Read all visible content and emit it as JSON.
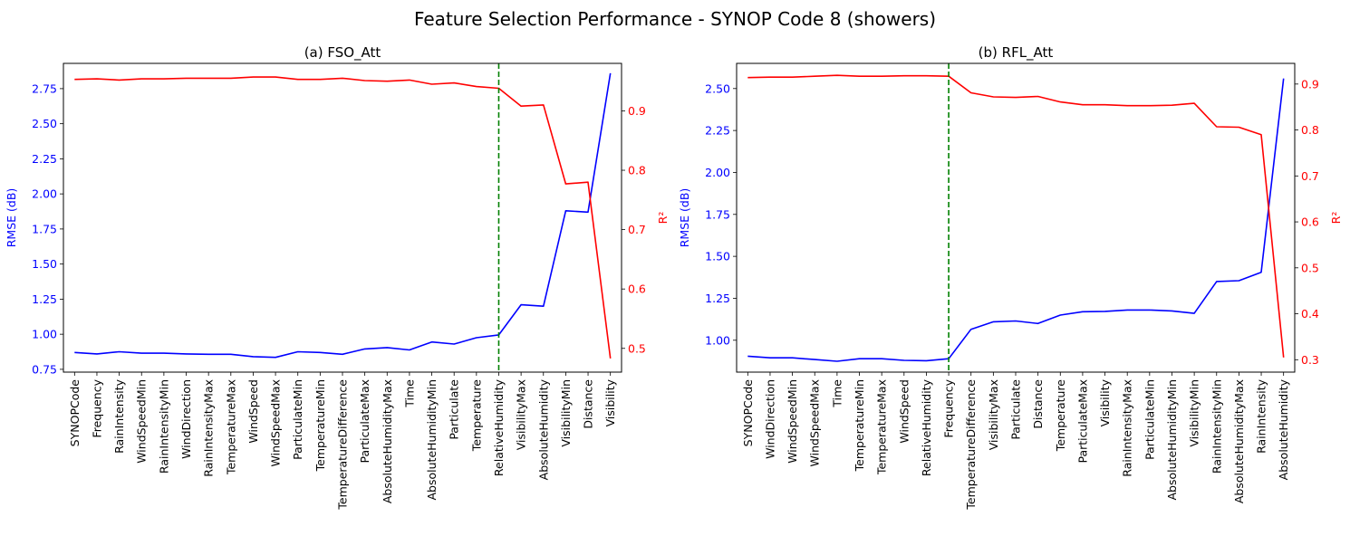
{
  "figure": {
    "title": "Feature Selection Performance - SYNOP Code 8 (showers)",
    "colors": {
      "rmse": "#0000ff",
      "r2": "#ff0000",
      "cutoff": "#008000"
    }
  },
  "chart_data": [
    {
      "type": "line",
      "title": "(a) FSO_Att",
      "xlabel": "",
      "ylabel_left": "RMSE (dB)",
      "ylabel_right": "R²",
      "categories": [
        "SYNOPCode",
        "Frequency",
        "RainIntensity",
        "WindSpeedMin",
        "RainIntensityMin",
        "WindDirection",
        "RainIntensityMax",
        "TemperatureMax",
        "WindSpeed",
        "WindSpeedMax",
        "ParticulateMin",
        "TemperatureMin",
        "TemperatureDifference",
        "ParticulateMax",
        "AbsoluteHumidityMax",
        "Time",
        "AbsoluteHumidityMin",
        "Particulate",
        "Temperature",
        "RelativeHumidity",
        "VisibilityMax",
        "AbsoluteHumidity",
        "VisibilityMin",
        "Distance",
        "Visibility"
      ],
      "left_ylim": [
        0.73,
        2.93
      ],
      "left_ticks": [
        "0.75",
        "1.00",
        "1.25",
        "1.50",
        "1.75",
        "2.00",
        "2.25",
        "2.50",
        "2.75"
      ],
      "right_ylim": [
        0.46,
        0.98
      ],
      "right_ticks": [
        "0.5",
        "0.6",
        "0.7",
        "0.8",
        "0.9"
      ],
      "cutoff_category": "RelativeHumidity",
      "series": [
        {
          "name": "",
          "axis": "left",
          "color": "#0000ff",
          "values": [
            0.87,
            0.86,
            0.875,
            0.865,
            0.865,
            0.86,
            0.857,
            0.857,
            0.84,
            0.835,
            0.875,
            0.87,
            0.857,
            0.895,
            0.905,
            0.888,
            0.945,
            0.93,
            0.975,
            0.995,
            1.21,
            1.2,
            1.88,
            1.87,
            2.86
          ]
        },
        {
          "name": "",
          "axis": "right",
          "color": "#ff0000",
          "values": [
            0.953,
            0.954,
            0.952,
            0.954,
            0.954,
            0.955,
            0.955,
            0.955,
            0.957,
            0.957,
            0.953,
            0.953,
            0.955,
            0.951,
            0.95,
            0.952,
            0.945,
            0.947,
            0.941,
            0.938,
            0.908,
            0.91,
            0.777,
            0.78,
            0.483
          ]
        }
      ],
      "grid": false
    },
    {
      "type": "line",
      "title": "(b) RFL_Att",
      "xlabel": "",
      "ylabel_left": "RMSE (dB)",
      "ylabel_right": "R²",
      "categories": [
        "SYNOPCode",
        "WindDirection",
        "WindSpeedMin",
        "WindSpeedMax",
        "Time",
        "TemperatureMin",
        "TemperatureMax",
        "WindSpeed",
        "RelativeHumidity",
        "Frequency",
        "TemperatureDifference",
        "VisibilityMax",
        "Particulate",
        "Distance",
        "Temperature",
        "ParticulateMax",
        "Visibility",
        "RainIntensityMax",
        "ParticulateMin",
        "AbsoluteHumidityMin",
        "VisibilityMin",
        "RainIntensityMin",
        "AbsoluteHumidityMax",
        "RainIntensity",
        "AbsoluteHumidity"
      ],
      "left_ylim": [
        0.81,
        2.65
      ],
      "left_ticks": [
        "1.00",
        "1.25",
        "1.50",
        "1.75",
        "2.00",
        "2.25",
        "2.50"
      ],
      "right_ylim": [
        0.273,
        0.945
      ],
      "right_ticks": [
        "0.3",
        "0.4",
        "0.5",
        "0.6",
        "0.7",
        "0.8",
        "0.9"
      ],
      "cutoff_category": "Frequency",
      "series": [
        {
          "name": "",
          "axis": "left",
          "color": "#0000ff",
          "values": [
            0.905,
            0.895,
            0.895,
            0.885,
            0.875,
            0.89,
            0.89,
            0.88,
            0.878,
            0.89,
            1.065,
            1.11,
            1.115,
            1.1,
            1.15,
            1.17,
            1.172,
            1.18,
            1.18,
            1.175,
            1.16,
            1.35,
            1.355,
            1.405,
            2.56
          ]
        },
        {
          "name": "",
          "axis": "right",
          "color": "#ff0000",
          "values": [
            0.914,
            0.915,
            0.915,
            0.917,
            0.919,
            0.917,
            0.917,
            0.918,
            0.918,
            0.917,
            0.881,
            0.872,
            0.871,
            0.873,
            0.861,
            0.855,
            0.855,
            0.853,
            0.853,
            0.854,
            0.858,
            0.807,
            0.806,
            0.79,
            0.305
          ]
        }
      ],
      "grid": false
    }
  ]
}
